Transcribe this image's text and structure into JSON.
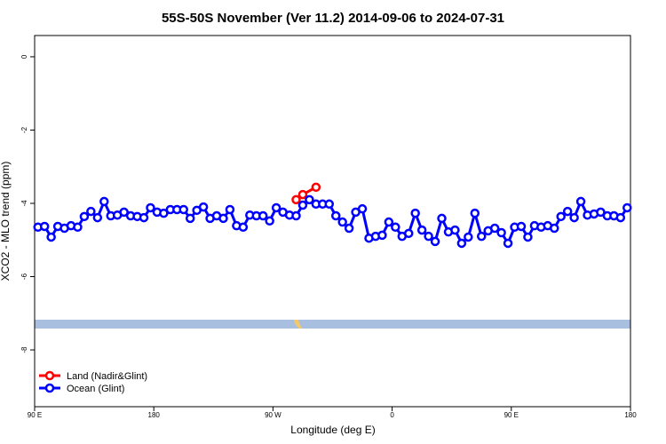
{
  "chart_data": {
    "type": "line",
    "title": "55S-50S November (Ver 11.2)   2014-09-06 to 2024-07-31",
    "x_label": "Longitude (deg E)",
    "y_label": "XCO2 - MLO trend (ppm)",
    "xlim": [
      90,
      540
    ],
    "ylim": [
      -9.55,
      0.58
    ],
    "xticks": [
      {
        "value": 90,
        "label": "90 E"
      },
      180,
      {
        "value": 270,
        "label": "90 W"
      },
      {
        "value": 360,
        "label": "0"
      },
      {
        "value": 450,
        "label": "90 E"
      },
      {
        "value": 540,
        "label": "180"
      }
    ],
    "yticks": [
      0,
      -2,
      -4,
      -6,
      -8
    ],
    "legend": "bottom-left",
    "series": [
      {
        "name": "Land (Nadir&Glint)",
        "color": "#ff0000",
        "x": [
          287.5,
          292.5,
          302.5
        ],
        "values": [
          -3.9,
          -3.76,
          -3.56
        ]
      },
      {
        "name": "Ocean (Glint)",
        "color": "#0000ff",
        "x": [
          92.5,
          97.5,
          102.5,
          107.5,
          112.5,
          117.5,
          122.5,
          127.5,
          132.5,
          137.5,
          142.5,
          147.5,
          152.5,
          157.5,
          162.5,
          167.5,
          172.5,
          177.5,
          182.5,
          187.5,
          192.5,
          197.5,
          202.5,
          207.5,
          212.5,
          217.5,
          222.5,
          227.5,
          232.5,
          237.5,
          242.5,
          247.5,
          252.5,
          257.5,
          262.5,
          267.5,
          272.5,
          277.5,
          282.5,
          287.5,
          292.5,
          297.5,
          302.5,
          307.5,
          312.5,
          317.5,
          322.5,
          327.5,
          332.5,
          337.5,
          342.5,
          347.5,
          352.5,
          357.5,
          362.5,
          367.5,
          372.5,
          377.5,
          382.5,
          387.5,
          392.5,
          397.5,
          402.5,
          407.5,
          412.5,
          417.5,
          422.5,
          427.5,
          432.5,
          437.5,
          442.5,
          447.5,
          452.5,
          457.5,
          462.5,
          467.5,
          472.5,
          477.5,
          482.5,
          487.5,
          492.5,
          497.5,
          502.5,
          507.5,
          512.5,
          517.5,
          522.5,
          527.5,
          532.5,
          537.5
        ],
        "values": [
          -4.65,
          -4.63,
          -4.92,
          -4.63,
          -4.68,
          -4.61,
          -4.65,
          -4.36,
          -4.22,
          -4.39,
          -3.95,
          -4.34,
          -4.32,
          -4.24,
          -4.34,
          -4.36,
          -4.39,
          -4.12,
          -4.24,
          -4.27,
          -4.17,
          -4.17,
          -4.17,
          -4.41,
          -4.19,
          -4.1,
          -4.41,
          -4.34,
          -4.41,
          -4.17,
          -4.61,
          -4.65,
          -4.32,
          -4.34,
          -4.34,
          -4.48,
          -4.12,
          -4.24,
          -4.32,
          -4.34,
          -4.05,
          -3.9,
          -4.02,
          -4.02,
          -4.02,
          -4.34,
          -4.51,
          -4.68,
          -4.24,
          -4.15,
          -4.95,
          -4.9,
          -4.87,
          -4.51,
          -4.65,
          -4.9,
          -4.82,
          -4.27,
          -4.73,
          -4.9,
          -5.04,
          -4.41,
          -4.78,
          -4.73,
          -5.09,
          -4.92,
          -4.27,
          -4.9,
          -4.75,
          -4.68,
          -4.8,
          -5.09,
          -4.65,
          -4.63,
          -4.92,
          -4.61,
          -4.65,
          -4.61,
          -4.68,
          -4.36,
          -4.22,
          -4.39,
          -3.95,
          -4.32,
          -4.29,
          -4.24,
          -4.34,
          -4.34,
          -4.39,
          -4.12
        ]
      }
    ]
  }
}
